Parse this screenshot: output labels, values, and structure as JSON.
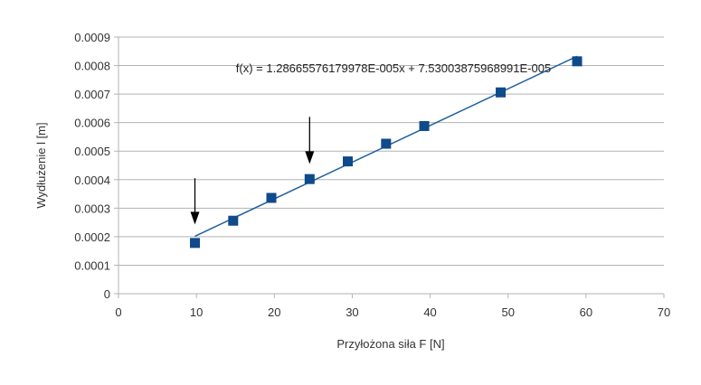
{
  "chart_data": {
    "type": "scatter",
    "xlabel": "Przyłożona siła F [N]",
    "ylabel": "Wydłużenie l [m]",
    "xlim": [
      0,
      70
    ],
    "ylim": [
      0,
      0.0009
    ],
    "x_ticks": [
      "0",
      "10",
      "20",
      "30",
      "40",
      "50",
      "60",
      "70"
    ],
    "y_ticks": [
      "0",
      "0.0001",
      "0.0002",
      "0.0003",
      "0.0004",
      "0.0005",
      "0.0006",
      "0.0007",
      "0.0008",
      "0.0009"
    ],
    "grid": "horizontal",
    "series": [
      {
        "x": [
          9.81,
          14.72,
          19.62,
          24.53,
          29.43,
          34.34,
          39.24,
          49.05,
          58.86
        ],
        "y": [
          0.000178,
          0.000256,
          0.000336,
          0.000402,
          0.000464,
          0.000526,
          0.000588,
          0.000706,
          0.000815
        ],
        "color": "#0f4a8a",
        "marker": "square"
      }
    ],
    "trendline": {
      "slope": 1.28665576179978e-05,
      "intercept": 7.53003875968991e-05,
      "x_range": [
        9.81,
        58.86
      ],
      "color": "#1f5f9f",
      "equation": "f(x) = 1.28665576179978E-005x + 7.53003875968991E-005"
    },
    "annotations": [
      {
        "type": "arrow",
        "x": 9.81,
        "y_from": 0.000405,
        "y_to": 0.000243,
        "color": "#000000"
      },
      {
        "type": "arrow",
        "x": 24.53,
        "y_from": 0.00062,
        "y_to": 0.000455,
        "color": "#000000"
      }
    ]
  }
}
